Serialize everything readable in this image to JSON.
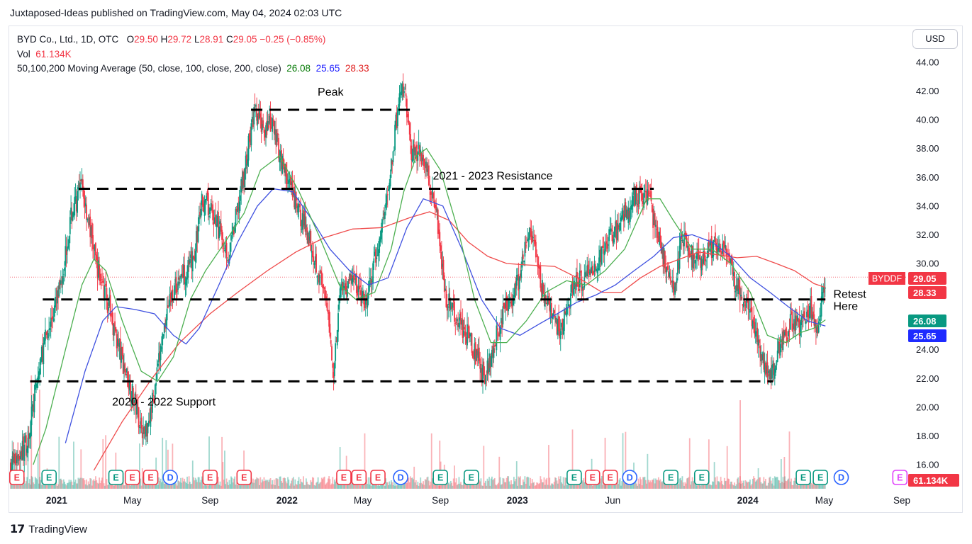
{
  "byline": "Juxtaposed-Ideas published on TradingView.com, May 04, 2024 02:03 UTC",
  "legend": {
    "symbol": "BYD Co., Ltd., 1D, OTC",
    "o_label": "O",
    "o": "29.50",
    "h_label": "H",
    "h": "29.72",
    "l_label": "L",
    "l": "28.91",
    "c_label": "C",
    "c": "29.05",
    "change": "−0.25 (−0.85%)",
    "vol_label": "Vol",
    "vol": "61.134K",
    "ma_label": "50,100,200 Moving Average (50, close, 100, close, 200, close)",
    "ma50": "26.08",
    "ma100": "25.65",
    "ma200": "28.33"
  },
  "currency": "USD",
  "footer": "TradingView",
  "colors": {
    "up": "#089981",
    "down": "#f23645",
    "ma50": "#4caf50",
    "ma100": "#3f51e0",
    "ma200": "#ef4b4b",
    "accent": "#f23645"
  },
  "chart_data": {
    "type": "candlestick",
    "ylim": [
      15.5,
      44.6
    ],
    "y_ticks": [
      "44.00",
      "42.00",
      "40.00",
      "38.00",
      "36.00",
      "34.00",
      "32.00",
      "30.00",
      "28.00",
      "26.00",
      "24.00",
      "22.00",
      "20.00",
      "18.00",
      "16.00"
    ],
    "x_ticks": [
      "2021",
      "May",
      "Sep",
      "2022",
      "May",
      "Sep",
      "2023",
      "Jun",
      "2024",
      "May",
      "Sep"
    ],
    "x_tick_dates": [
      "2021-01-01",
      "2021-05-01",
      "2021-09-01",
      "2022-01-01",
      "2022-05-01",
      "2022-09-01",
      "2023-01-01",
      "2023-06-01",
      "2024-01-01",
      "2024-05-01",
      "2024-09-01"
    ],
    "x_range": [
      "2020-10-19",
      "2024-09-10"
    ],
    "price_key_points": [
      [
        "2020-10-20",
        15.9
      ],
      [
        "2020-11-15",
        17.5
      ],
      [
        "2020-12-10",
        24.0
      ],
      [
        "2021-01-05",
        28.0
      ],
      [
        "2021-01-25",
        33.5
      ],
      [
        "2021-02-10",
        35.4
      ],
      [
        "2021-03-05",
        30.0
      ],
      [
        "2021-03-25",
        27.0
      ],
      [
        "2021-04-10",
        24.0
      ],
      [
        "2021-04-25",
        21.8
      ],
      [
        "2021-05-20",
        18.0
      ],
      [
        "2021-06-05",
        21.0
      ],
      [
        "2021-06-25",
        27.0
      ],
      [
        "2021-07-15",
        29.0
      ],
      [
        "2021-08-05",
        30.0
      ],
      [
        "2021-08-20",
        34.5
      ],
      [
        "2021-09-10",
        33.0
      ],
      [
        "2021-10-01",
        30.5
      ],
      [
        "2021-10-20",
        35.0
      ],
      [
        "2021-11-10",
        40.5
      ],
      [
        "2021-11-25",
        39.5
      ],
      [
        "2021-12-10",
        39.5
      ],
      [
        "2021-12-25",
        37.0
      ],
      [
        "2022-01-15",
        34.0
      ],
      [
        "2022-02-05",
        32.0
      ],
      [
        "2022-02-25",
        28.5
      ],
      [
        "2022-03-10",
        25.5
      ],
      [
        "2022-03-15",
        22.0
      ],
      [
        "2022-03-25",
        28.0
      ],
      [
        "2022-04-15",
        29.0
      ],
      [
        "2022-05-05",
        27.0
      ],
      [
        "2022-05-25",
        31.0
      ],
      [
        "2022-06-10",
        35.0
      ],
      [
        "2022-06-25",
        40.5
      ],
      [
        "2022-07-05",
        42.5
      ],
      [
        "2022-07-15",
        38.0
      ],
      [
        "2022-08-05",
        37.5
      ],
      [
        "2022-08-25",
        34.0
      ],
      [
        "2022-09-10",
        27.5
      ],
      [
        "2022-10-01",
        26.0
      ],
      [
        "2022-10-20",
        24.5
      ],
      [
        "2022-11-10",
        22.0
      ],
      [
        "2022-11-25",
        24.5
      ],
      [
        "2022-12-15",
        27.0
      ],
      [
        "2023-01-05",
        29.0
      ],
      [
        "2023-01-20",
        32.5
      ],
      [
        "2023-02-05",
        29.0
      ],
      [
        "2023-02-25",
        26.0
      ],
      [
        "2023-03-10",
        25.2
      ],
      [
        "2023-04-01",
        28.5
      ],
      [
        "2023-04-20",
        29.0
      ],
      [
        "2023-05-10",
        30.0
      ],
      [
        "2023-05-25",
        31.5
      ],
      [
        "2023-06-15",
        33.0
      ],
      [
        "2023-07-05",
        34.5
      ],
      [
        "2023-07-25",
        35.0
      ],
      [
        "2023-08-05",
        33.0
      ],
      [
        "2023-08-20",
        30.5
      ],
      [
        "2023-09-05",
        28.0
      ],
      [
        "2023-09-20",
        32.0
      ],
      [
        "2023-10-10",
        30.0
      ],
      [
        "2023-10-25",
        30.5
      ],
      [
        "2023-11-10",
        31.5
      ],
      [
        "2023-11-25",
        31.0
      ],
      [
        "2023-12-10",
        29.0
      ],
      [
        "2023-12-25",
        27.5
      ],
      [
        "2024-01-10",
        26.0
      ],
      [
        "2024-01-25",
        23.5
      ],
      [
        "2024-02-05",
        22.0
      ],
      [
        "2024-02-20",
        24.0
      ],
      [
        "2024-03-10",
        26.0
      ],
      [
        "2024-03-25",
        25.5
      ],
      [
        "2024-04-10",
        27.0
      ],
      [
        "2024-04-20",
        25.0
      ],
      [
        "2024-05-03",
        29.05
      ]
    ],
    "ma50_points": [
      [
        "2020-11-25",
        16.0
      ],
      [
        "2020-12-15",
        18.5
      ],
      [
        "2021-01-15",
        24.0
      ],
      [
        "2021-02-10",
        28.5
      ],
      [
        "2021-03-01",
        30.3
      ],
      [
        "2021-03-20",
        29.5
      ],
      [
        "2021-04-15",
        26.0
      ],
      [
        "2021-05-15",
        22.5
      ],
      [
        "2021-06-10",
        21.8
      ],
      [
        "2021-07-05",
        23.5
      ],
      [
        "2021-08-01",
        27.5
      ],
      [
        "2021-08-25",
        29.5
      ],
      [
        "2021-09-25",
        31.5
      ],
      [
        "2021-10-25",
        33.5
      ],
      [
        "2021-11-20",
        36.5
      ],
      [
        "2021-12-20",
        37.5
      ],
      [
        "2022-01-20",
        35.0
      ],
      [
        "2022-02-20",
        32.0
      ],
      [
        "2022-03-25",
        28.5
      ],
      [
        "2022-04-20",
        27.5
      ],
      [
        "2022-05-20",
        28.0
      ],
      [
        "2022-06-15",
        31.0
      ],
      [
        "2022-07-05",
        35.0
      ],
      [
        "2022-07-25",
        37.5
      ],
      [
        "2022-08-10",
        38.0
      ],
      [
        "2022-09-01",
        36.5
      ],
      [
        "2022-10-01",
        32.0
      ],
      [
        "2022-10-25",
        27.5
      ],
      [
        "2022-11-20",
        24.5
      ],
      [
        "2022-12-15",
        24.5
      ],
      [
        "2023-01-15",
        26.0
      ],
      [
        "2023-02-15",
        28.0
      ],
      [
        "2023-03-20",
        28.8
      ],
      [
        "2023-04-20",
        28.5
      ],
      [
        "2023-05-20",
        29.5
      ],
      [
        "2023-06-20",
        31.0
      ],
      [
        "2023-07-25",
        34.5
      ],
      [
        "2023-08-15",
        34.5
      ],
      [
        "2023-09-05",
        33.0
      ],
      [
        "2023-10-05",
        31.0
      ],
      [
        "2023-11-05",
        31.0
      ],
      [
        "2023-12-05",
        30.0
      ],
      [
        "2024-01-05",
        28.0
      ],
      [
        "2024-02-01",
        25.0
      ],
      [
        "2024-03-01",
        24.5
      ],
      [
        "2024-03-25",
        25.2
      ],
      [
        "2024-04-15",
        25.5
      ],
      [
        "2024-05-03",
        26.08
      ]
    ],
    "ma100_points": [
      [
        "2021-01-15",
        17.5
      ],
      [
        "2021-02-15",
        22.5
      ],
      [
        "2021-03-15",
        26.0
      ],
      [
        "2021-04-05",
        27.0
      ],
      [
        "2021-05-05",
        26.8
      ],
      [
        "2021-06-05",
        26.5
      ],
      [
        "2021-07-05",
        25.0
      ],
      [
        "2021-07-25",
        24.4
      ],
      [
        "2021-08-15",
        25.5
      ],
      [
        "2021-09-15",
        28.5
      ],
      [
        "2021-10-15",
        31.5
      ],
      [
        "2021-11-15",
        34.0
      ],
      [
        "2021-12-10",
        35.2
      ],
      [
        "2022-01-10",
        35.0
      ],
      [
        "2022-02-10",
        33.0
      ],
      [
        "2022-03-10",
        31.0
      ],
      [
        "2022-04-10",
        29.5
      ],
      [
        "2022-05-10",
        28.5
      ],
      [
        "2022-06-10",
        29.0
      ],
      [
        "2022-07-10",
        32.5
      ],
      [
        "2022-08-05",
        34.5
      ],
      [
        "2022-09-05",
        34.0
      ],
      [
        "2022-10-05",
        31.0
      ],
      [
        "2022-11-05",
        27.5
      ],
      [
        "2022-12-05",
        25.5
      ],
      [
        "2023-01-05",
        25.0
      ],
      [
        "2023-02-05",
        25.8
      ],
      [
        "2023-03-05",
        26.5
      ],
      [
        "2023-04-05",
        27.3
      ],
      [
        "2023-05-05",
        27.8
      ],
      [
        "2023-06-05",
        28.5
      ],
      [
        "2023-07-05",
        29.5
      ],
      [
        "2023-08-05",
        30.5
      ],
      [
        "2023-09-05",
        31.8
      ],
      [
        "2023-10-05",
        32.0
      ],
      [
        "2023-11-05",
        31.5
      ],
      [
        "2023-12-05",
        30.5
      ],
      [
        "2024-01-05",
        29.0
      ],
      [
        "2024-02-05",
        28.0
      ],
      [
        "2024-03-05",
        27.0
      ],
      [
        "2024-04-05",
        26.0
      ],
      [
        "2024-05-03",
        25.65
      ]
    ],
    "ma200_points": [
      [
        "2021-03-01",
        15.6
      ],
      [
        "2021-04-15",
        19.0
      ],
      [
        "2021-06-01",
        22.0
      ],
      [
        "2021-07-15",
        24.5
      ],
      [
        "2021-09-01",
        26.5
      ],
      [
        "2021-10-15",
        28.0
      ],
      [
        "2021-12-01",
        29.5
      ],
      [
        "2022-01-15",
        30.8
      ],
      [
        "2022-03-01",
        31.8
      ],
      [
        "2022-04-15",
        32.4
      ],
      [
        "2022-06-01",
        32.5
      ],
      [
        "2022-07-15",
        33.2
      ],
      [
        "2022-08-15",
        33.6
      ],
      [
        "2022-09-15",
        33.0
      ],
      [
        "2022-10-15",
        31.5
      ],
      [
        "2022-11-15",
        30.5
      ],
      [
        "2022-12-15",
        30.0
      ],
      [
        "2023-01-15",
        29.9
      ],
      [
        "2023-03-01",
        29.8
      ],
      [
        "2023-04-15",
        28.8
      ],
      [
        "2023-05-15",
        28.0
      ],
      [
        "2023-06-15",
        28.0
      ],
      [
        "2023-07-15",
        29.0
      ],
      [
        "2023-08-15",
        29.8
      ],
      [
        "2023-09-15",
        30.3
      ],
      [
        "2023-10-15",
        30.8
      ],
      [
        "2023-11-15",
        30.6
      ],
      [
        "2023-12-15",
        30.4
      ],
      [
        "2024-01-15",
        30.5
      ],
      [
        "2024-02-15",
        30.0
      ],
      [
        "2024-03-15",
        29.5
      ],
      [
        "2024-04-15",
        28.6
      ],
      [
        "2024-05-03",
        28.33
      ]
    ],
    "levels": [
      {
        "label": "Peak",
        "y": 40.7,
        "from": "2021-11-05",
        "to": "2022-07-15"
      },
      {
        "label": "2021 - 2023 Resistance",
        "y": 35.2,
        "from": "2021-02-05",
        "to": "2023-08-05"
      },
      {
        "label": "",
        "y": 27.5,
        "from": "2020-12-10",
        "to": "2024-05-03"
      },
      {
        "label": "2020 - 2022 Support",
        "y": 21.8,
        "from": "2020-11-20",
        "to": "2024-02-10"
      }
    ],
    "annotations": [
      {
        "text_lines": [
          "Retest",
          "Here"
        ],
        "x": "2024-05-10",
        "y": 27.5
      }
    ],
    "price_tags": [
      {
        "label": "BYDDF",
        "value": "29.05",
        "color": "#f23645"
      },
      {
        "label": "",
        "value": "28.33",
        "color": "#f23645"
      },
      {
        "label": "",
        "value": "26.08",
        "color": "#089981"
      },
      {
        "label": "",
        "value": "25.65",
        "color": "#1e2bff"
      },
      {
        "label": "",
        "value": "61.134K",
        "color": "#f23645"
      }
    ],
    "event_markers": [
      {
        "type": "E",
        "date": "2020-10-30",
        "color": "#f23645"
      },
      {
        "type": "E",
        "date": "2020-12-20",
        "color": "#089981"
      },
      {
        "type": "E",
        "date": "2021-04-05",
        "color": "#089981"
      },
      {
        "type": "E",
        "date": "2021-05-01",
        "color": "#f23645"
      },
      {
        "type": "E",
        "date": "2021-05-30",
        "color": "#f23645"
      },
      {
        "type": "D",
        "date": "2021-06-30",
        "color": "#2962ff"
      },
      {
        "type": "E",
        "date": "2021-09-01",
        "color": "#f23645"
      },
      {
        "type": "E",
        "date": "2021-10-25",
        "color": "#f23645"
      },
      {
        "type": "E",
        "date": "2022-04-01",
        "color": "#f23645"
      },
      {
        "type": "E",
        "date": "2022-04-25",
        "color": "#f23645"
      },
      {
        "type": "E",
        "date": "2022-05-25",
        "color": "#f23645"
      },
      {
        "type": "D",
        "date": "2022-06-30",
        "color": "#2962ff"
      },
      {
        "type": "E",
        "date": "2022-09-01",
        "color": "#089981"
      },
      {
        "type": "E",
        "date": "2022-10-20",
        "color": "#089981"
      },
      {
        "type": "E",
        "date": "2023-04-01",
        "color": "#089981"
      },
      {
        "type": "E",
        "date": "2023-04-30",
        "color": "#f23645"
      },
      {
        "type": "E",
        "date": "2023-05-28",
        "color": "#f23645"
      },
      {
        "type": "D",
        "date": "2023-06-28",
        "color": "#2962ff"
      },
      {
        "type": "E",
        "date": "2023-09-01",
        "color": "#089981"
      },
      {
        "type": "E",
        "date": "2023-10-20",
        "color": "#089981"
      },
      {
        "type": "E",
        "date": "2024-03-29",
        "color": "#089981"
      },
      {
        "type": "E",
        "date": "2024-04-25",
        "color": "#089981"
      },
      {
        "type": "D",
        "date": "2024-05-28",
        "color": "#2962ff"
      },
      {
        "type": "E",
        "date": "2024-08-29",
        "color": "#e040fb"
      }
    ]
  }
}
